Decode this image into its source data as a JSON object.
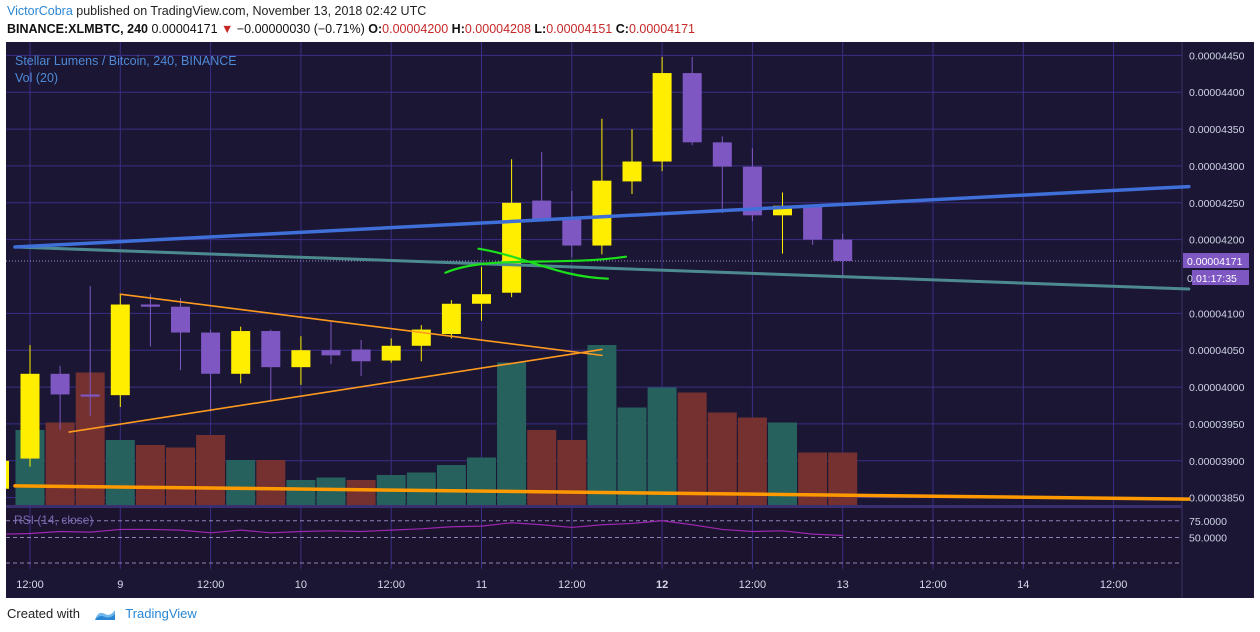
{
  "header": {
    "author": "VictorCobra",
    "published_text": "published on TradingView.com, November 13, 2018 02:42 UTC",
    "symbol": "BINANCE:XLMBTC, 240",
    "last": "0.00004171",
    "change": "−0.00000030 (−0.71%)",
    "o_label": "O:",
    "o_value": "0.00004200",
    "h_label": "H:",
    "h_value": "0.00004208",
    "l_label": "L:",
    "l_value": "0.00004151",
    "c_label": "C:",
    "c_value": "0.00004171"
  },
  "footer": {
    "created_with": "Created with",
    "brand": "TradingView"
  },
  "colors": {
    "background": "#1a1633",
    "grid": "#3a2f86",
    "bull": "#ffee00",
    "bear": "#7e57c2",
    "vol_up": "#26615e",
    "vol_down": "#74312f",
    "trend_blue": "#3f6fd8",
    "trend_teal": "#4d8a8f",
    "triangle": "#ff9a1f",
    "support": "#ff9900",
    "scribble": "#1be11b",
    "rsi": "#9c27b0",
    "price_tag": "#7e57c2"
  },
  "chart_data": [
    {
      "type": "candlestick",
      "title": "Stellar Lumens / Bitcoin, 240, BINANCE",
      "volume_label": "Vol (20)",
      "ylim": [
        3.84e-05,
        4.46e-05
      ],
      "y_ticks": [
        "0.00004450",
        "0.00004400",
        "0.00004350",
        "0.00004300",
        "0.00004250",
        "0.00004200",
        "0.00004100",
        "0.00004050",
        "0.00004000",
        "0.00003950",
        "0.00003900",
        "0.00003850"
      ],
      "x_ticks": [
        {
          "i": 0,
          "label": "12:00",
          "bold": false
        },
        {
          "i": 3,
          "label": "9",
          "bold": false
        },
        {
          "i": 6,
          "label": "12:00",
          "bold": false
        },
        {
          "i": 9,
          "label": "10",
          "bold": false
        },
        {
          "i": 12,
          "label": "12:00",
          "bold": false
        },
        {
          "i": 15,
          "label": "11",
          "bold": false
        },
        {
          "i": 18,
          "label": "12:00",
          "bold": false
        },
        {
          "i": 21,
          "label": "12",
          "bold": true
        },
        {
          "i": 24,
          "label": "12:00",
          "bold": false
        },
        {
          "i": 27,
          "label": "13",
          "bold": false
        },
        {
          "i": 30,
          "label": "12:00",
          "bold": false
        },
        {
          "i": 33,
          "label": "14",
          "bold": false
        },
        {
          "i": 36,
          "label": "12:00",
          "bold": false
        }
      ],
      "candles": [
        {
          "o": 3.903e-05,
          "h": 4.057e-05,
          "l": 3.892e-05,
          "c": 4.018e-05
        },
        {
          "o": 4.018e-05,
          "h": 4.029e-05,
          "l": 3.942e-05,
          "c": 3.99e-05
        },
        {
          "o": 3.99e-05,
          "h": 4.137e-05,
          "l": 3.961e-05,
          "c": 3.987e-05
        },
        {
          "o": 3.989e-05,
          "h": 4.126e-05,
          "l": 3.973e-05,
          "c": 4.112e-05
        },
        {
          "o": 4.112e-05,
          "h": 4.126e-05,
          "l": 4.055e-05,
          "c": 4.109e-05
        },
        {
          "o": 4.109e-05,
          "h": 4.121e-05,
          "l": 4.023e-05,
          "c": 4.074e-05
        },
        {
          "o": 4.074e-05,
          "h": 4.078e-05,
          "l": 3.967e-05,
          "c": 4.018e-05
        },
        {
          "o": 4.018e-05,
          "h": 4.082e-05,
          "l": 4.005e-05,
          "c": 4.076e-05
        },
        {
          "o": 4.076e-05,
          "h": 4.078e-05,
          "l": 3.982e-05,
          "c": 4.027e-05
        },
        {
          "o": 4.027e-05,
          "h": 4.069e-05,
          "l": 4.003e-05,
          "c": 4.05e-05
        },
        {
          "o": 4.05e-05,
          "h": 4.09e-05,
          "l": 4.031e-05,
          "c": 4.043e-05
        },
        {
          "o": 4.051e-05,
          "h": 4.064e-05,
          "l": 4.015e-05,
          "c": 4.035e-05
        },
        {
          "o": 4.036e-05,
          "h": 4.066e-05,
          "l": 4.033e-05,
          "c": 4.056e-05
        },
        {
          "o": 4.056e-05,
          "h": 4.084e-05,
          "l": 4.035e-05,
          "c": 4.078e-05
        },
        {
          "o": 4.072e-05,
          "h": 4.118e-05,
          "l": 4.066e-05,
          "c": 4.113e-05
        },
        {
          "o": 4.113e-05,
          "h": 4.163e-05,
          "l": 4.09e-05,
          "c": 4.126e-05
        },
        {
          "o": 4.128e-05,
          "h": 4.309e-05,
          "l": 4.122e-05,
          "c": 4.25e-05
        },
        {
          "o": 4.253e-05,
          "h": 4.319e-05,
          "l": 4.225e-05,
          "c": 4.228e-05
        },
        {
          "o": 4.228e-05,
          "h": 4.266e-05,
          "l": 4.176e-05,
          "c": 4.192e-05
        },
        {
          "o": 4.192e-05,
          "h": 4.364e-05,
          "l": 4.18e-05,
          "c": 4.28e-05
        },
        {
          "o": 4.279e-05,
          "h": 4.35e-05,
          "l": 4.262e-05,
          "c": 4.306e-05
        },
        {
          "o": 4.306e-05,
          "h": 4.448e-05,
          "l": 4.293e-05,
          "c": 4.426e-05
        },
        {
          "o": 4.426e-05,
          "h": 4.448e-05,
          "l": 4.328e-05,
          "c": 4.332e-05
        },
        {
          "o": 4.332e-05,
          "h": 4.34e-05,
          "l": 4.236e-05,
          "c": 4.299e-05
        },
        {
          "o": 4.299e-05,
          "h": 4.324e-05,
          "l": 4.225e-05,
          "c": 4.233e-05
        },
        {
          "o": 4.233e-05,
          "h": 4.264e-05,
          "l": 4.181e-05,
          "c": 4.246e-05
        },
        {
          "o": 4.246e-05,
          "h": 4.246e-05,
          "l": 4.193e-05,
          "c": 4.2e-05
        },
        {
          "o": 4.2e-05,
          "h": 4.208e-05,
          "l": 4.151e-05,
          "c": 4.171e-05
        }
      ],
      "volumes": [
        {
          "v": 0.3,
          "up": true
        },
        {
          "v": 0.33,
          "up": false
        },
        {
          "v": 0.53,
          "up": false
        },
        {
          "v": 0.26,
          "up": true
        },
        {
          "v": 0.24,
          "up": false
        },
        {
          "v": 0.23,
          "up": false
        },
        {
          "v": 0.28,
          "up": false
        },
        {
          "v": 0.18,
          "up": true
        },
        {
          "v": 0.18,
          "up": false
        },
        {
          "v": 0.1,
          "up": true
        },
        {
          "v": 0.11,
          "up": true
        },
        {
          "v": 0.1,
          "up": false
        },
        {
          "v": 0.12,
          "up": true
        },
        {
          "v": 0.13,
          "up": true
        },
        {
          "v": 0.16,
          "up": true
        },
        {
          "v": 0.19,
          "up": true
        },
        {
          "v": 0.57,
          "up": true
        },
        {
          "v": 0.3,
          "up": false
        },
        {
          "v": 0.26,
          "up": false
        },
        {
          "v": 0.64,
          "up": true
        },
        {
          "v": 0.39,
          "up": true
        },
        {
          "v": 0.47,
          "up": true
        },
        {
          "v": 0.45,
          "up": false
        },
        {
          "v": 0.37,
          "up": false
        },
        {
          "v": 0.35,
          "up": false
        },
        {
          "v": 0.33,
          "up": true
        },
        {
          "v": 0.21,
          "up": false
        },
        {
          "v": 0.21,
          "up": false
        }
      ],
      "annotations": {
        "blue_trendline": {
          "from": {
            "i": -0.5,
            "p": 4.19e-05
          },
          "to": {
            "i": 38.5,
            "p": 4.272e-05
          }
        },
        "teal_trendline": {
          "from": {
            "i": -0.5,
            "p": 4.19e-05
          },
          "to": {
            "i": 38.5,
            "p": 4.133e-05
          }
        },
        "triangle_upper": {
          "from": {
            "i": 3,
            "p": 4.126e-05
          },
          "to": {
            "i": 19,
            "p": 4.043e-05
          }
        },
        "triangle_lower": {
          "from": {
            "i": 1.3,
            "p": 3.939e-05
          },
          "to": {
            "i": 19,
            "p": 4.051e-05
          }
        },
        "support_line": {
          "from": {
            "i": -0.5,
            "p": 3.866e-05
          },
          "to": {
            "i": 38.5,
            "p": 3.848e-05
          }
        }
      },
      "current_price": "0.00004171",
      "countdown": "01:17:35",
      "rsi": {
        "label": "RSI (14, close)",
        "upper_level": "75.0000",
        "mid_level": "50.0000",
        "levels": [
          75,
          50
        ],
        "range": [
          0,
          100
        ],
        "values": [
          56,
          59,
          58,
          62,
          62,
          61,
          57,
          61,
          57,
          59,
          60,
          59,
          61,
          63,
          66,
          67,
          72,
          69,
          65,
          69,
          71,
          75,
          69,
          62,
          59,
          60,
          55,
          53
        ]
      }
    }
  ]
}
